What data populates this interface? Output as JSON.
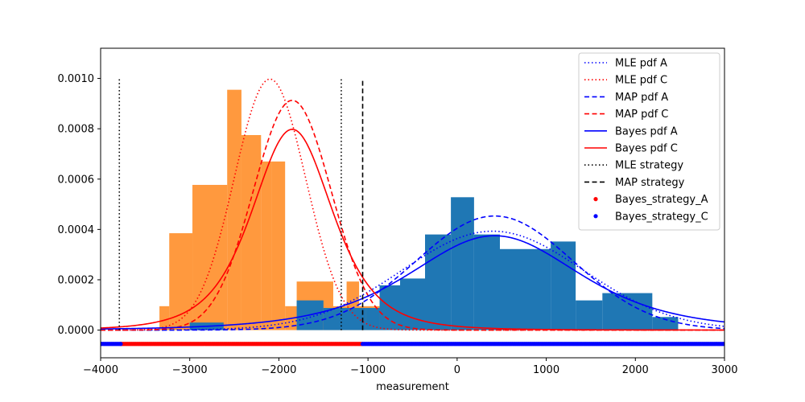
{
  "chart_data": {
    "type": "histogram+line",
    "title": "",
    "xlabel": "measurement",
    "ylabel": "",
    "xlim": [
      -4000,
      3000
    ],
    "ylim": [
      -0.00011,
      0.00112
    ],
    "grid": false,
    "legend_position": "top-right",
    "x_ticks": [
      -4000,
      -3000,
      -2000,
      -1000,
      0,
      1000,
      2000,
      3000
    ],
    "x_tick_labels": [
      "−4000",
      "−3000",
      "−2000",
      "−1000",
      "0",
      "1000",
      "2000",
      "3000"
    ],
    "y_ticks": [
      0,
      0.0002,
      0.0004,
      0.0006,
      0.0008,
      0.001
    ],
    "y_tick_labels": [
      "0.0000",
      "0.0002",
      "0.0004",
      "0.0006",
      "0.0008",
      "0.0010"
    ],
    "colors": {
      "hist_C": "#ff7f0e",
      "hist_A": "#1f77b4",
      "class_A": "#0000ff",
      "class_C": "#ff0000",
      "strategy": "#000000"
    },
    "histogram_C": {
      "color": "#ff7f0e",
      "opacity": 0.8,
      "bins": [
        {
          "x0": -3340,
          "x1": -3230,
          "y": 9.5e-05
        },
        {
          "x0": -3230,
          "x1": -2970,
          "y": 0.000385
        },
        {
          "x0": -2970,
          "x1": -2580,
          "y": 0.000577
        },
        {
          "x0": -2580,
          "x1": -2420,
          "y": 0.000955
        },
        {
          "x0": -2420,
          "x1": -2200,
          "y": 0.000775
        },
        {
          "x0": -2200,
          "x1": -2080,
          "y": 0.00067
        },
        {
          "x0": -2080,
          "x1": -1930,
          "y": 0.00067
        },
        {
          "x0": -1930,
          "x1": -1800,
          "y": 9.5e-05
        },
        {
          "x0": -1800,
          "x1": -1390,
          "y": 0.000193
        },
        {
          "x0": -1390,
          "x1": -1240,
          "y": 9.5e-05
        },
        {
          "x0": -1240,
          "x1": -1100,
          "y": 0.000193
        },
        {
          "x0": -1100,
          "x1": -940,
          "y": 9.5e-05
        },
        {
          "x0": -940,
          "x1": -800,
          "y": 9.5e-05
        }
      ]
    },
    "histogram_A": {
      "color": "#1f77b4",
      "opacity": 1.0,
      "bins": [
        {
          "x0": -3000,
          "x1": -2620,
          "y": 3e-05
        },
        {
          "x0": -1800,
          "x1": -1500,
          "y": 0.000118
        },
        {
          "x0": -1500,
          "x1": -1020,
          "y": 8.8e-05
        },
        {
          "x0": -1020,
          "x1": -870,
          "y": 8.8e-05
        },
        {
          "x0": -870,
          "x1": -640,
          "y": 0.000178
        },
        {
          "x0": -640,
          "x1": -360,
          "y": 0.000205
        },
        {
          "x0": -360,
          "x1": -70,
          "y": 0.00038
        },
        {
          "x0": -70,
          "x1": 190,
          "y": 0.000528
        },
        {
          "x0": 190,
          "x1": 480,
          "y": 0.00038
        },
        {
          "x0": 480,
          "x1": 1050,
          "y": 0.000322
        },
        {
          "x0": 1050,
          "x1": 1330,
          "y": 0.000352
        },
        {
          "x0": 1330,
          "x1": 1630,
          "y": 0.000118
        },
        {
          "x0": 1630,
          "x1": 2190,
          "y": 0.000147
        },
        {
          "x0": 2190,
          "x1": 2480,
          "y": 5.2e-05
        }
      ]
    },
    "series": [
      {
        "name": "MLE pdf A",
        "type": "normal",
        "mean": 400,
        "sd": 1015,
        "color": "#0000ff",
        "dash": "dotted"
      },
      {
        "name": "MLE pdf C",
        "type": "normal",
        "mean": -2100,
        "sd": 400,
        "color": "#ff0000",
        "dash": "dotted"
      },
      {
        "name": "MAP pdf A",
        "type": "normal",
        "mean": 420,
        "sd": 880,
        "color": "#0000ff",
        "dash": "dashed"
      },
      {
        "name": "MAP pdf C",
        "type": "normal",
        "mean": -1850,
        "sd": 437,
        "color": "#ff0000",
        "dash": "dashed"
      },
      {
        "name": "Bayes pdf A",
        "type": "student_t",
        "mean": 420,
        "scale": 1000,
        "df": 4,
        "color": "#0000ff",
        "dash": "solid"
      },
      {
        "name": "Bayes pdf C",
        "type": "student_t",
        "mean": -1850,
        "scale": 470,
        "df": 4,
        "color": "#ff0000",
        "dash": "solid"
      }
    ],
    "strategy_lines": [
      {
        "name": "MLE strategy",
        "x_values": [
          -3790,
          -1300
        ],
        "y_top": 0.001,
        "color": "#000000",
        "dash": "dotted"
      },
      {
        "name": "MAP strategy",
        "x_values": [
          -1060
        ],
        "y_top": 0.001,
        "color": "#000000",
        "dash": "dashed"
      }
    ],
    "strategy_markers": {
      "y": -5.5e-05,
      "regions": [
        {
          "name": "Bayes_strategy_A",
          "from": -3770,
          "to": -1060,
          "color": "#ff0000"
        },
        {
          "name": "Bayes_strategy_C",
          "from": -4000,
          "to": -3770,
          "color": "#0000ff"
        },
        {
          "name": "Bayes_strategy_C",
          "from": -1060,
          "to": 3000,
          "color": "#0000ff"
        }
      ]
    },
    "legend": [
      {
        "label": "MLE pdf A",
        "color": "#0000ff",
        "style": "dotted"
      },
      {
        "label": "MLE pdf C",
        "color": "#ff0000",
        "style": "dotted"
      },
      {
        "label": "MAP pdf A",
        "color": "#0000ff",
        "style": "dashed"
      },
      {
        "label": "MAP pdf C",
        "color": "#ff0000",
        "style": "dashed"
      },
      {
        "label": "Bayes pdf A",
        "color": "#0000ff",
        "style": "solid"
      },
      {
        "label": "Bayes pdf C",
        "color": "#ff0000",
        "style": "solid"
      },
      {
        "label": "MLE strategy",
        "color": "#000000",
        "style": "dotted"
      },
      {
        "label": "MAP strategy",
        "color": "#000000",
        "style": "dashed"
      },
      {
        "label": "Bayes_strategy_A",
        "color": "#ff0000",
        "style": "marker"
      },
      {
        "label": "Bayes_strategy_C",
        "color": "#0000ff",
        "style": "marker"
      }
    ]
  }
}
